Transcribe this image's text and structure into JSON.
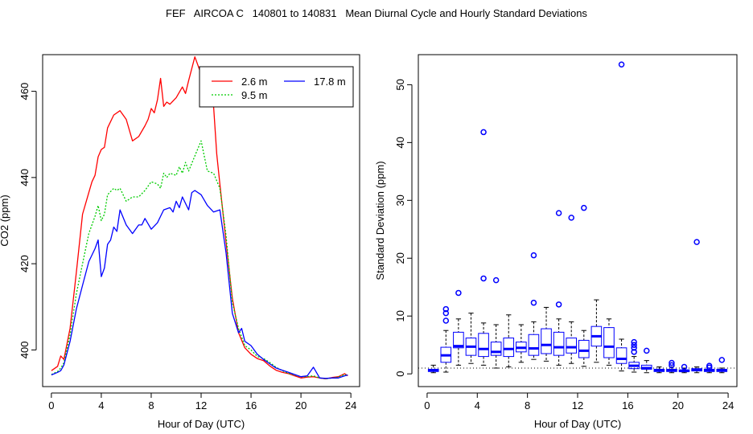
{
  "title": "FEF   AIRCOA C   140801 to 140831   Mean Diurnal Cycle and Hourly Standard Deviations",
  "chart_data": [
    {
      "type": "line",
      "xlabel": "Hour of Day (UTC)",
      "ylabel": "CO2 (ppm)",
      "xlim": [
        -0.7,
        24.7
      ],
      "ylim": [
        391.5,
        468.5
      ],
      "xticks": [
        0,
        4,
        8,
        12,
        16,
        20,
        24
      ],
      "yticks": [
        400,
        420,
        440,
        460
      ],
      "legend_position": "top-right",
      "series": [
        {
          "name": "2.6 m",
          "color": "#ff0000",
          "dash": "solid",
          "x": [
            0,
            0.5,
            0.75,
            1,
            1.5,
            2,
            2.5,
            3,
            3.25,
            3.5,
            3.75,
            4,
            4.25,
            4.5,
            5,
            5.5,
            6,
            6.5,
            7,
            7.5,
            7.75,
            8,
            8.25,
            8.5,
            8.75,
            9,
            9.25,
            9.5,
            10,
            10.5,
            10.75,
            11,
            11.5,
            12,
            12.5,
            13,
            13.25,
            13.5,
            14,
            14.5,
            15,
            15.5,
            16,
            16.5,
            17,
            17.5,
            18,
            18.5,
            19,
            19.5,
            20,
            20.5,
            21,
            21.5,
            22,
            22.5,
            23,
            23.5,
            23.75
          ],
          "values": [
            395.2,
            396.2,
            398.6,
            397.8,
            405,
            418,
            431.5,
            436.5,
            439,
            440.5,
            444.8,
            446.5,
            447,
            451.5,
            454.5,
            455.5,
            453.5,
            448.5,
            449.5,
            452,
            453.5,
            456,
            455,
            458,
            463,
            456.5,
            457.5,
            457,
            458.5,
            461,
            459.5,
            462.5,
            468,
            464,
            460,
            456.5,
            445.5,
            438.5,
            425,
            412,
            404,
            400.5,
            399,
            398,
            397.5,
            396.3,
            395.3,
            394.8,
            394.5,
            394,
            393.5,
            393.7,
            393.8,
            393.5,
            393.3,
            393.6,
            393.8,
            394.5,
            394
          ]
        },
        {
          "name": "9.5 m",
          "color": "#00cc00",
          "dash": "dotted",
          "x": [
            0,
            0.5,
            0.75,
            1,
            1.5,
            2,
            2.5,
            3,
            3.5,
            3.75,
            4,
            4.25,
            4.5,
            5,
            5.25,
            5.5,
            6,
            6.5,
            7,
            7.5,
            8,
            8.5,
            8.75,
            9,
            9.25,
            9.5,
            10,
            10.25,
            10.5,
            10.75,
            11,
            11.5,
            12,
            12.5,
            13,
            13.5,
            14,
            14.5,
            15,
            15.5,
            16,
            16.5,
            17,
            17.5,
            18,
            18.5,
            19,
            19.5,
            20,
            20.5,
            21,
            21.5,
            22,
            22.5,
            23,
            23.5,
            23.75
          ],
          "values": [
            394.3,
            395,
            395.8,
            397,
            403.5,
            413,
            420,
            427,
            431,
            433.5,
            430,
            431.5,
            436,
            437.5,
            437,
            437.5,
            434.5,
            435.5,
            435.5,
            437,
            439,
            438.5,
            437.5,
            441,
            440,
            441,
            440.5,
            442.5,
            441,
            443.5,
            441.5,
            445,
            448.5,
            441.5,
            441,
            437.5,
            426.5,
            411,
            405,
            401,
            400,
            398.5,
            398,
            397.1,
            396,
            395.2,
            394.6,
            394.2,
            393.8,
            393.8,
            394,
            393.5,
            393.3,
            393.5,
            393.7,
            394.3,
            393.9
          ]
        },
        {
          "name": "17.8 m",
          "color": "#0000ff",
          "dash": "solid",
          "x": [
            0,
            0.5,
            0.75,
            1,
            1.5,
            2,
            2.5,
            3,
            3.5,
            3.75,
            4,
            4.25,
            4.5,
            4.75,
            5,
            5.25,
            5.5,
            6,
            6.5,
            7,
            7.25,
            7.5,
            8,
            8.5,
            8.75,
            9,
            9.5,
            9.75,
            10,
            10.25,
            10.5,
            11,
            11.25,
            11.5,
            12,
            12.5,
            13,
            13.5,
            14,
            14.5,
            15,
            15.25,
            15.5,
            16,
            16.5,
            17,
            17.5,
            18,
            18.5,
            19,
            19.5,
            20,
            20.5,
            21,
            21.5,
            22,
            22.5,
            23,
            23.5,
            23.75
          ],
          "values": [
            394.2,
            394.8,
            395.2,
            396.5,
            402,
            409.5,
            415,
            420.5,
            423.5,
            425.5,
            417,
            419,
            424.5,
            425.5,
            428.5,
            427.5,
            432.5,
            429,
            427,
            429,
            429,
            430.5,
            428,
            429.5,
            431,
            432.5,
            433,
            432,
            434.5,
            433,
            435.5,
            432.5,
            436.5,
            437,
            436,
            433.5,
            432,
            432.5,
            422.5,
            408.5,
            404,
            405,
            402,
            401,
            399,
            397.8,
            396.8,
            395.8,
            395.3,
            394.8,
            394.3,
            393.8,
            394,
            396,
            393.5,
            393.4,
            393.5,
            393.5,
            394,
            394.2
          ]
        }
      ]
    },
    {
      "type": "box",
      "xlabel": "Hour of Day (UTC)",
      "ylabel": "Standard Deviation (ppm)",
      "xlim": [
        -0.7,
        24.7
      ],
      "ylim": [
        -2.2,
        55.2
      ],
      "xticks": [
        0,
        4,
        8,
        12,
        16,
        20,
        24
      ],
      "yticks": [
        0,
        10,
        20,
        30,
        40,
        50
      ],
      "reference_line": 1,
      "color": "#0000ff",
      "boxes": [
        {
          "x": 0.5,
          "lo": 0.2,
          "q1": 0.4,
          "med": 0.6,
          "q3": 0.8,
          "hi": 1.5,
          "out": []
        },
        {
          "x": 1.5,
          "lo": 0.3,
          "q1": 2.0,
          "med": 3.2,
          "q3": 4.6,
          "hi": 7.5,
          "out": [
            9.2,
            10.5,
            11.2
          ]
        },
        {
          "x": 2.5,
          "lo": 1.5,
          "q1": 4.5,
          "med": 4.8,
          "q3": 7.2,
          "hi": 9.5,
          "out": [
            14.0
          ]
        },
        {
          "x": 3.5,
          "lo": 1.8,
          "q1": 3.2,
          "med": 4.7,
          "q3": 6.2,
          "hi": 10.5,
          "out": []
        },
        {
          "x": 4.5,
          "lo": 1.5,
          "q1": 3.0,
          "med": 4.3,
          "q3": 7.0,
          "hi": 8.8,
          "out": [
            16.5,
            41.8
          ]
        },
        {
          "x": 5.5,
          "lo": 1.0,
          "q1": 3.2,
          "med": 3.8,
          "q3": 5.5,
          "hi": 8.5,
          "out": [
            16.2
          ]
        },
        {
          "x": 6.5,
          "lo": 1.2,
          "q1": 3.0,
          "med": 4.3,
          "q3": 6.2,
          "hi": 10.2,
          "out": []
        },
        {
          "x": 7.5,
          "lo": 2.0,
          "q1": 3.8,
          "med": 4.5,
          "q3": 5.5,
          "hi": 8.5,
          "out": []
        },
        {
          "x": 8.5,
          "lo": 2.5,
          "q1": 3.2,
          "med": 4.4,
          "q3": 6.8,
          "hi": 9.0,
          "out": [
            12.3,
            20.5
          ]
        },
        {
          "x": 9.5,
          "lo": 2.2,
          "q1": 3.5,
          "med": 5.0,
          "q3": 7.8,
          "hi": 11.5,
          "out": []
        },
        {
          "x": 10.5,
          "lo": 1.5,
          "q1": 3.2,
          "med": 4.6,
          "q3": 7.2,
          "hi": 9.5,
          "out": [
            12.0,
            27.8
          ]
        },
        {
          "x": 11.5,
          "lo": 1.8,
          "q1": 3.6,
          "med": 4.6,
          "q3": 6.2,
          "hi": 9.0,
          "out": [
            27.0
          ]
        },
        {
          "x": 12.5,
          "lo": 1.3,
          "q1": 2.8,
          "med": 4.0,
          "q3": 5.8,
          "hi": 7.5,
          "out": [
            28.7
          ]
        },
        {
          "x": 13.5,
          "lo": 2.0,
          "q1": 4.8,
          "med": 6.5,
          "q3": 8.2,
          "hi": 12.8,
          "out": []
        },
        {
          "x": 14.5,
          "lo": 1.5,
          "q1": 2.8,
          "med": 4.7,
          "q3": 8.0,
          "hi": 9.5,
          "out": []
        },
        {
          "x": 15.5,
          "lo": 0.5,
          "q1": 1.8,
          "med": 2.6,
          "q3": 4.5,
          "hi": 6.0,
          "out": [
            53.5
          ]
        },
        {
          "x": 16.5,
          "lo": 0.3,
          "q1": 0.9,
          "med": 1.4,
          "q3": 2.0,
          "hi": 3.0,
          "out": [
            3.8,
            4.5,
            5.0,
            5.5
          ]
        },
        {
          "x": 17.5,
          "lo": 0.2,
          "q1": 0.8,
          "med": 1.0,
          "q3": 1.5,
          "hi": 2.3,
          "out": [
            4.0
          ]
        },
        {
          "x": 18.5,
          "lo": 0.2,
          "q1": 0.4,
          "med": 0.6,
          "q3": 0.8,
          "hi": 1.2,
          "out": []
        },
        {
          "x": 19.5,
          "lo": 0.2,
          "q1": 0.4,
          "med": 0.6,
          "q3": 0.8,
          "hi": 1.2,
          "out": [
            1.5,
            1.9
          ]
        },
        {
          "x": 20.5,
          "lo": 0.2,
          "q1": 0.4,
          "med": 0.5,
          "q3": 0.7,
          "hi": 1.0,
          "out": [
            1.2
          ]
        },
        {
          "x": 21.5,
          "lo": 0.2,
          "q1": 0.5,
          "med": 0.7,
          "q3": 0.9,
          "hi": 1.2,
          "out": [
            22.8
          ]
        },
        {
          "x": 22.5,
          "lo": 0.2,
          "q1": 0.4,
          "med": 0.6,
          "q3": 0.8,
          "hi": 1.0,
          "out": [
            1.1,
            1.4
          ]
        },
        {
          "x": 23.5,
          "lo": 0.2,
          "q1": 0.4,
          "med": 0.6,
          "q3": 0.8,
          "hi": 1.0,
          "out": [
            2.4
          ]
        }
      ]
    }
  ]
}
